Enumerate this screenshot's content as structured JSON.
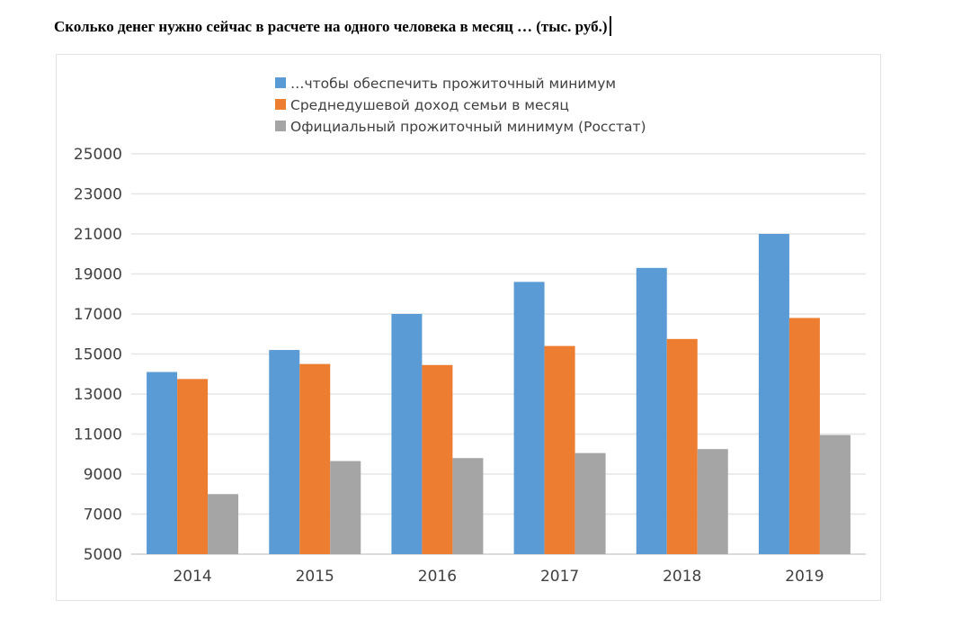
{
  "heading": "Сколько денег нужно сейчас в расчете на одного человека в месяц … (тыс. руб.)",
  "chart_data": {
    "type": "bar",
    "categories": [
      "2014",
      "2015",
      "2016",
      "2017",
      "2018",
      "2019"
    ],
    "series": [
      {
        "name": "…чтобы обеспечить прожиточный минимум",
        "color": "#5B9BD5",
        "values": [
          14100,
          15200,
          17000,
          18600,
          19300,
          21000
        ]
      },
      {
        "name": "Среднедушевой доход семьи в месяц",
        "color": "#ED7D31",
        "values": [
          13750,
          14500,
          14450,
          15400,
          15750,
          16800
        ]
      },
      {
        "name": "Официальный прожиточный минимум (Росстат)",
        "color": "#A5A5A5",
        "values": [
          8000,
          9650,
          9800,
          10050,
          10250,
          10950
        ]
      }
    ],
    "ylim": [
      5000,
      25000
    ],
    "yticks": [
      5000,
      7000,
      9000,
      11000,
      13000,
      15000,
      17000,
      19000,
      21000,
      23000,
      25000
    ],
    "grid": true,
    "legend_position": "top"
  }
}
